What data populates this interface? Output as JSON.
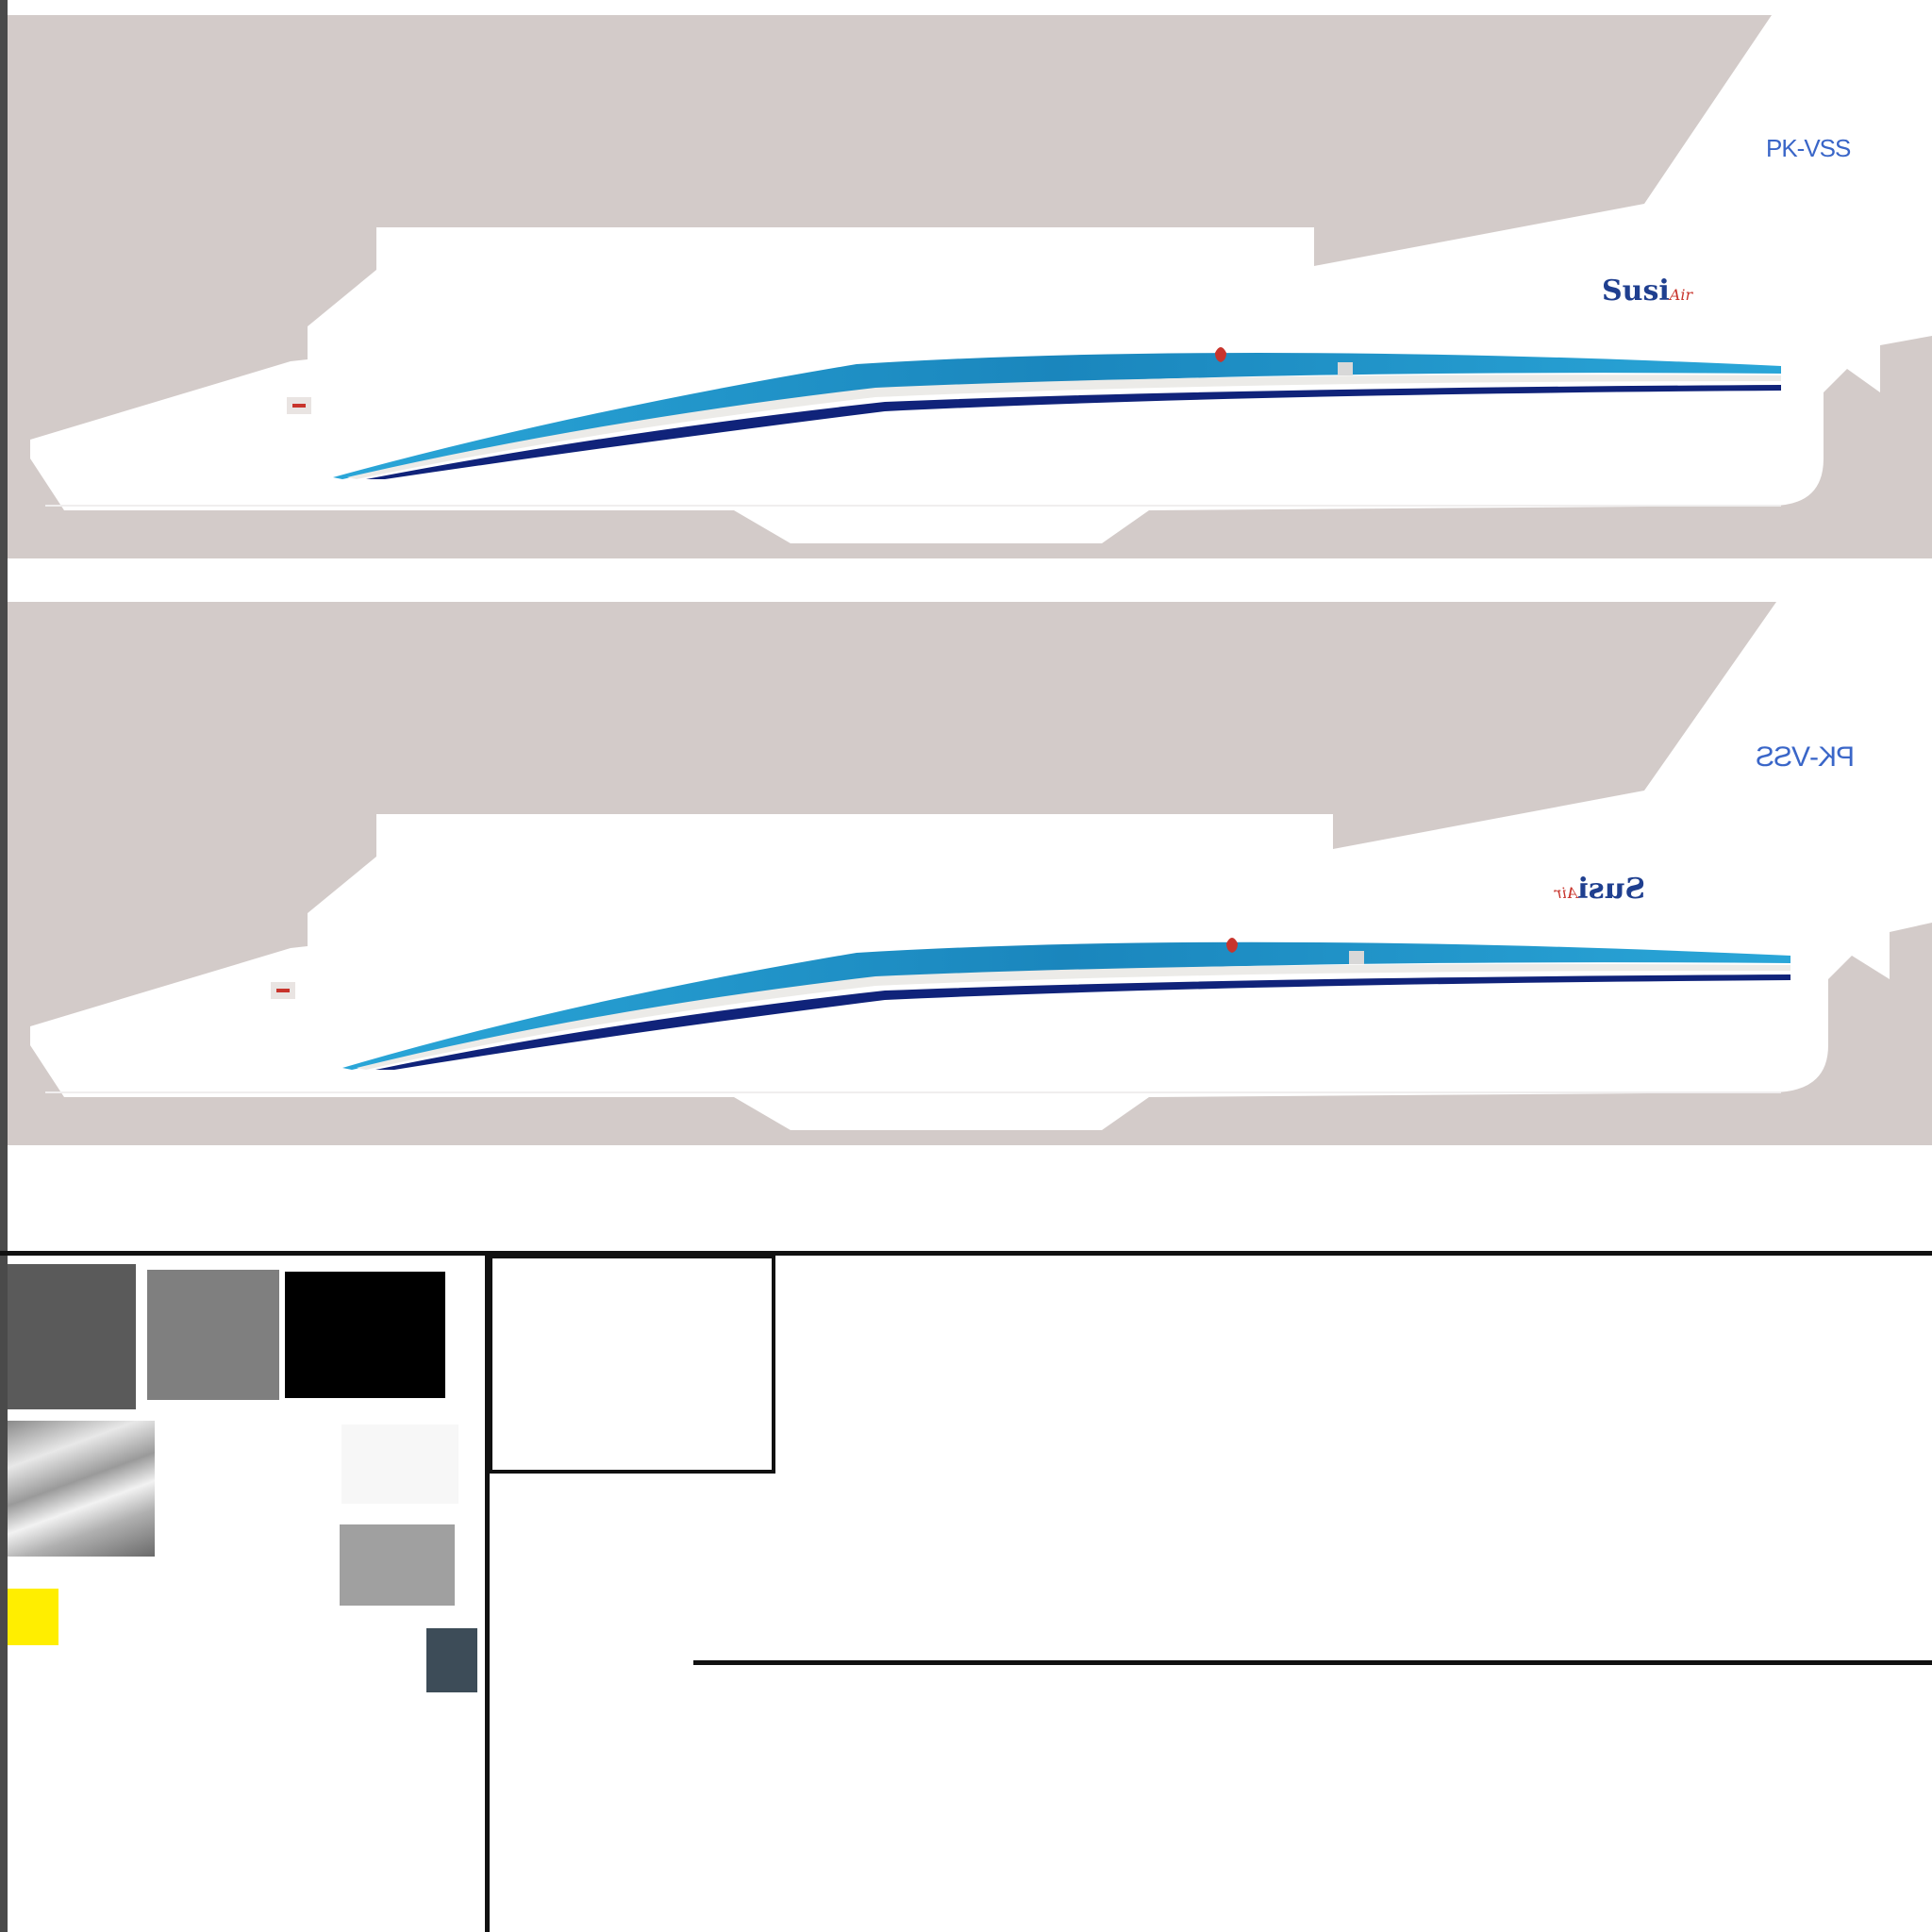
{
  "livery": {
    "top_view": {
      "registration": "PK-VSS",
      "logo_main": "Susi",
      "logo_suffix": "Air"
    },
    "bottom_view": {
      "registration": "PK-VSS",
      "logo_main": "Susi",
      "logo_suffix": "Air",
      "mirrored": true
    }
  },
  "colors": {
    "background_panel": "#d3cbc9",
    "fuselage": "#ffffff",
    "stripe_light_blue": "#2aa6d8",
    "stripe_dark_blue": "#10237a",
    "registration_text": "#3a66c8",
    "logo_blue": "#1f3f8f",
    "logo_red": "#c8342c"
  },
  "palette": [
    {
      "name": "dark-gray",
      "color": "#5a5a5a"
    },
    {
      "name": "mid-gray",
      "color": "#7f7f7f"
    },
    {
      "name": "black",
      "color": "#000000"
    },
    {
      "name": "metal-gradient",
      "color": "#b8b8b8"
    },
    {
      "name": "off-white",
      "color": "#f7f7f7"
    },
    {
      "name": "light-gray",
      "color": "#a0a0a0"
    },
    {
      "name": "yellow",
      "color": "#ffee00"
    },
    {
      "name": "slate",
      "color": "#3d4c58"
    }
  ]
}
